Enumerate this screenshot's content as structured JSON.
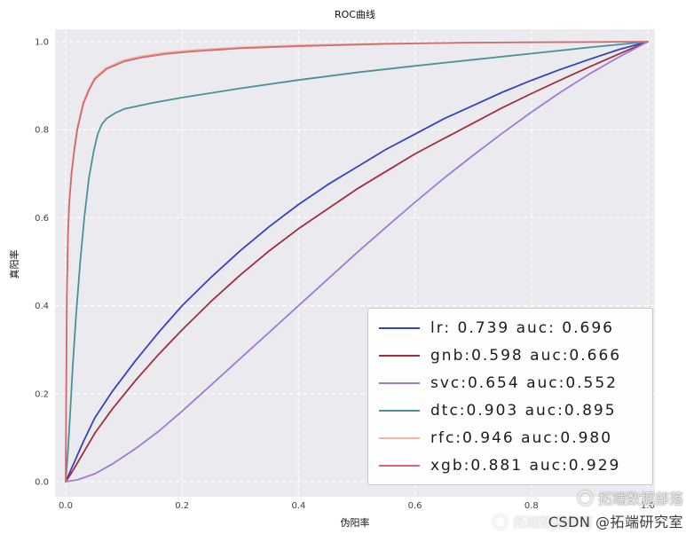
{
  "figure": {
    "title": "ROC曲线",
    "xlabel": "伪阳率",
    "ylabel": "真阳率"
  },
  "watermarks": {
    "community_badge": "拓端数据部落",
    "csdn_credit": "CSDN @拓端研究室"
  },
  "chart_data": {
    "type": "line",
    "title": "ROC曲线",
    "xlabel": "伪阳率",
    "ylabel": "真阳率",
    "xlim": [
      -0.02,
      1.02
    ],
    "ylim": [
      -0.02,
      1.02
    ],
    "grid": true,
    "grid_style": "dashed",
    "grid_color": "#ffffff",
    "plot_background": "#eaeaef",
    "legend_position": "lower right",
    "xticks": [
      0.0,
      0.2,
      0.4,
      0.6,
      0.8,
      1.0
    ],
    "xtick_labels": [
      "0.0",
      "0.2",
      "0.4",
      "0.6",
      "0.8",
      "1.0"
    ],
    "yticks": [
      0.0,
      0.2,
      0.4,
      0.6,
      0.8,
      1.0
    ],
    "ytick_labels": [
      "0.0",
      "0.2",
      "0.4",
      "0.6",
      "0.8",
      "1.0"
    ],
    "series": [
      {
        "name": "lr",
        "legend_label": "lr: 0.739 auc: 0.696",
        "score": 0.739,
        "auc": 0.696,
        "color": "#3642c4",
        "points": [
          [
            0,
            0
          ],
          [
            0.01,
            0.03
          ],
          [
            0.03,
            0.09
          ],
          [
            0.05,
            0.145
          ],
          [
            0.08,
            0.205
          ],
          [
            0.12,
            0.275
          ],
          [
            0.16,
            0.34
          ],
          [
            0.2,
            0.4
          ],
          [
            0.25,
            0.465
          ],
          [
            0.3,
            0.525
          ],
          [
            0.35,
            0.58
          ],
          [
            0.4,
            0.63
          ],
          [
            0.45,
            0.675
          ],
          [
            0.5,
            0.715
          ],
          [
            0.55,
            0.755
          ],
          [
            0.6,
            0.79
          ],
          [
            0.65,
            0.825
          ],
          [
            0.7,
            0.855
          ],
          [
            0.75,
            0.885
          ],
          [
            0.8,
            0.912
          ],
          [
            0.85,
            0.937
          ],
          [
            0.9,
            0.96
          ],
          [
            0.95,
            0.982
          ],
          [
            1,
            1
          ]
        ]
      },
      {
        "name": "gnb",
        "legend_label": "gnb:0.598 auc:0.666",
        "score": 0.598,
        "auc": 0.666,
        "color": "#a42e3d",
        "points": [
          [
            0,
            0
          ],
          [
            0.01,
            0.02
          ],
          [
            0.03,
            0.065
          ],
          [
            0.05,
            0.11
          ],
          [
            0.08,
            0.165
          ],
          [
            0.12,
            0.23
          ],
          [
            0.16,
            0.29
          ],
          [
            0.2,
            0.345
          ],
          [
            0.25,
            0.41
          ],
          [
            0.3,
            0.47
          ],
          [
            0.35,
            0.525
          ],
          [
            0.4,
            0.575
          ],
          [
            0.45,
            0.62
          ],
          [
            0.5,
            0.665
          ],
          [
            0.55,
            0.705
          ],
          [
            0.6,
            0.745
          ],
          [
            0.65,
            0.78
          ],
          [
            0.7,
            0.815
          ],
          [
            0.75,
            0.85
          ],
          [
            0.8,
            0.882
          ],
          [
            0.85,
            0.913
          ],
          [
            0.9,
            0.943
          ],
          [
            0.95,
            0.972
          ],
          [
            1,
            1
          ]
        ]
      },
      {
        "name": "svc",
        "legend_label": "svc:0.654 auc:0.552",
        "score": 0.654,
        "auc": 0.552,
        "color": "#9d7bd8",
        "points": [
          [
            0,
            0
          ],
          [
            0.02,
            0.004
          ],
          [
            0.05,
            0.018
          ],
          [
            0.08,
            0.04
          ],
          [
            0.12,
            0.075
          ],
          [
            0.16,
            0.115
          ],
          [
            0.2,
            0.16
          ],
          [
            0.25,
            0.22
          ],
          [
            0.3,
            0.28
          ],
          [
            0.35,
            0.34
          ],
          [
            0.4,
            0.4
          ],
          [
            0.45,
            0.46
          ],
          [
            0.5,
            0.52
          ],
          [
            0.55,
            0.578
          ],
          [
            0.6,
            0.635
          ],
          [
            0.65,
            0.69
          ],
          [
            0.7,
            0.742
          ],
          [
            0.75,
            0.792
          ],
          [
            0.8,
            0.84
          ],
          [
            0.85,
            0.885
          ],
          [
            0.9,
            0.927
          ],
          [
            0.95,
            0.965
          ],
          [
            1,
            1
          ]
        ]
      },
      {
        "name": "dtc",
        "legend_label": "dtc:0.903 auc:0.895",
        "score": 0.903,
        "auc": 0.895,
        "color": "#4a9197",
        "points": [
          [
            0,
            0
          ],
          [
            0.004,
            0.07
          ],
          [
            0.008,
            0.16
          ],
          [
            0.012,
            0.26
          ],
          [
            0.018,
            0.38
          ],
          [
            0.025,
            0.5
          ],
          [
            0.032,
            0.6
          ],
          [
            0.04,
            0.69
          ],
          [
            0.048,
            0.75
          ],
          [
            0.055,
            0.79
          ],
          [
            0.062,
            0.812
          ],
          [
            0.07,
            0.825
          ],
          [
            0.085,
            0.838
          ],
          [
            0.1,
            0.847
          ],
          [
            0.15,
            0.861
          ],
          [
            0.2,
            0.873
          ],
          [
            0.3,
            0.894
          ],
          [
            0.4,
            0.913
          ],
          [
            0.5,
            0.93
          ],
          [
            0.6,
            0.945
          ],
          [
            0.7,
            0.959
          ],
          [
            0.8,
            0.973
          ],
          [
            0.9,
            0.987
          ],
          [
            1,
            1
          ]
        ]
      },
      {
        "name": "rfc",
        "legend_label": "rfc:0.946 auc:0.980",
        "score": 0.946,
        "auc": 0.98,
        "color": "#f5b3a0",
        "points": [
          [
            0,
            0
          ],
          [
            0.002,
            0.424
          ],
          [
            0.004,
            0.564
          ],
          [
            0.006,
            0.634
          ],
          [
            0.01,
            0.704
          ],
          [
            0.015,
            0.759
          ],
          [
            0.02,
            0.804
          ],
          [
            0.03,
            0.862
          ],
          [
            0.04,
            0.893
          ],
          [
            0.05,
            0.918
          ],
          [
            0.07,
            0.941
          ],
          [
            0.1,
            0.958
          ],
          [
            0.13,
            0.967
          ],
          [
            0.17,
            0.975
          ],
          [
            0.22,
            0.981
          ],
          [
            0.3,
            0.987
          ],
          [
            0.4,
            0.992
          ],
          [
            0.55,
            0.996
          ],
          [
            0.7,
            0.998
          ],
          [
            0.85,
            0.999
          ],
          [
            1,
            1
          ]
        ]
      },
      {
        "name": "xgb",
        "legend_label": "xgb:0.881 auc:0.929",
        "score": 0.881,
        "auc": 0.929,
        "color": "#d4696f",
        "points": [
          [
            0,
            0
          ],
          [
            0.002,
            0.42
          ],
          [
            0.004,
            0.56
          ],
          [
            0.006,
            0.63
          ],
          [
            0.01,
            0.7
          ],
          [
            0.015,
            0.755
          ],
          [
            0.02,
            0.8
          ],
          [
            0.03,
            0.858
          ],
          [
            0.04,
            0.89
          ],
          [
            0.05,
            0.915
          ],
          [
            0.07,
            0.938
          ],
          [
            0.1,
            0.955
          ],
          [
            0.13,
            0.964
          ],
          [
            0.17,
            0.972
          ],
          [
            0.22,
            0.978
          ],
          [
            0.3,
            0.985
          ],
          [
            0.4,
            0.99
          ],
          [
            0.55,
            0.995
          ],
          [
            0.7,
            0.998
          ],
          [
            0.85,
            0.999
          ],
          [
            1,
            1
          ]
        ]
      }
    ]
  }
}
